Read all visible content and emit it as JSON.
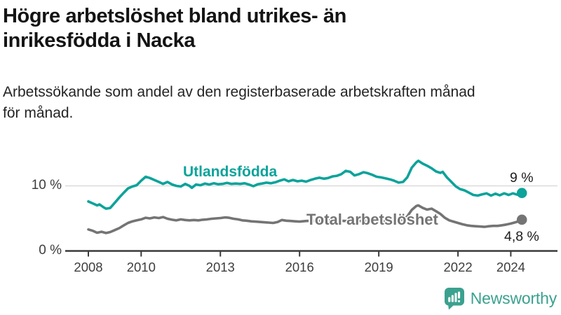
{
  "header": {
    "title_line1": "Högre arbetslöshet bland utrikes- än",
    "title_line2": "inrikesfödda i Nacka",
    "subtitle_line1": "Arbetssökande som andel av den registerbaserade arbetskraften månad",
    "subtitle_line2": "för månad."
  },
  "chart_data": {
    "type": "line",
    "title": "Högre arbetslöshet bland utrikes- än inrikesfödda i Nacka",
    "subtitle": "Arbetssökande som andel av den registerbaserade arbetskraften månad för månad.",
    "x_ticks": [
      2008,
      2010,
      2013,
      2016,
      2019,
      2022,
      2024
    ],
    "y_ticks": [
      {
        "value": 0,
        "label": "0 %"
      },
      {
        "value": 10,
        "label": "10 %"
      }
    ],
    "xlim": [
      2008,
      2024.6
    ],
    "ylim": [
      0,
      15.5
    ],
    "grid": "single horizontal gridline at 10 %",
    "legend_position": "inline labels on lines",
    "axis_color": "#3a3a3a",
    "gridline_color": "#dbdbdb",
    "series": [
      {
        "name": "Utlandsfödda",
        "color": "#0ba39a",
        "end_label": "9 %",
        "end_value": 8.9,
        "points": [
          [
            2008.0,
            7.6
          ],
          [
            2008.17,
            7.3
          ],
          [
            2008.33,
            7.0
          ],
          [
            2008.42,
            7.15
          ],
          [
            2008.58,
            6.7
          ],
          [
            2008.67,
            6.5
          ],
          [
            2008.83,
            6.6
          ],
          [
            2009.0,
            7.4
          ],
          [
            2009.17,
            8.2
          ],
          [
            2009.33,
            8.9
          ],
          [
            2009.5,
            9.6
          ],
          [
            2009.67,
            9.9
          ],
          [
            2009.83,
            10.1
          ],
          [
            2010.0,
            10.8
          ],
          [
            2010.17,
            11.4
          ],
          [
            2010.33,
            11.2
          ],
          [
            2010.5,
            10.9
          ],
          [
            2010.67,
            10.6
          ],
          [
            2010.83,
            10.3
          ],
          [
            2011.0,
            10.6
          ],
          [
            2011.17,
            10.2
          ],
          [
            2011.33,
            10.0
          ],
          [
            2011.5,
            9.9
          ],
          [
            2011.67,
            10.3
          ],
          [
            2011.83,
            10.0
          ],
          [
            2011.92,
            9.7
          ],
          [
            2012.08,
            10.2
          ],
          [
            2012.25,
            10.1
          ],
          [
            2012.42,
            10.35
          ],
          [
            2012.58,
            10.2
          ],
          [
            2012.75,
            10.4
          ],
          [
            2012.92,
            10.25
          ],
          [
            2013.08,
            10.3
          ],
          [
            2013.25,
            10.45
          ],
          [
            2013.42,
            10.3
          ],
          [
            2013.58,
            10.35
          ],
          [
            2013.75,
            10.3
          ],
          [
            2013.92,
            10.4
          ],
          [
            2014.08,
            10.2
          ],
          [
            2014.25,
            9.95
          ],
          [
            2014.42,
            10.25
          ],
          [
            2014.58,
            10.35
          ],
          [
            2014.75,
            10.5
          ],
          [
            2014.92,
            10.4
          ],
          [
            2015.08,
            10.55
          ],
          [
            2015.25,
            10.8
          ],
          [
            2015.42,
            11.0
          ],
          [
            2015.58,
            10.7
          ],
          [
            2015.75,
            10.9
          ],
          [
            2015.92,
            10.7
          ],
          [
            2016.08,
            10.8
          ],
          [
            2016.25,
            10.65
          ],
          [
            2016.42,
            10.9
          ],
          [
            2016.58,
            11.1
          ],
          [
            2016.75,
            11.25
          ],
          [
            2016.92,
            11.1
          ],
          [
            2017.08,
            11.2
          ],
          [
            2017.25,
            11.45
          ],
          [
            2017.42,
            11.55
          ],
          [
            2017.58,
            11.8
          ],
          [
            2017.75,
            12.3
          ],
          [
            2017.92,
            12.15
          ],
          [
            2018.08,
            11.6
          ],
          [
            2018.25,
            11.8
          ],
          [
            2018.42,
            12.1
          ],
          [
            2018.58,
            11.95
          ],
          [
            2018.75,
            11.7
          ],
          [
            2018.92,
            11.4
          ],
          [
            2019.08,
            11.3
          ],
          [
            2019.25,
            11.15
          ],
          [
            2019.42,
            11.0
          ],
          [
            2019.58,
            10.8
          ],
          [
            2019.75,
            10.5
          ],
          [
            2019.92,
            10.6
          ],
          [
            2020.08,
            11.3
          ],
          [
            2020.25,
            12.8
          ],
          [
            2020.42,
            13.6
          ],
          [
            2020.5,
            13.85
          ],
          [
            2020.67,
            13.4
          ],
          [
            2020.83,
            13.1
          ],
          [
            2021.0,
            12.7
          ],
          [
            2021.17,
            12.2
          ],
          [
            2021.33,
            12.0
          ],
          [
            2021.42,
            12.15
          ],
          [
            2021.58,
            11.3
          ],
          [
            2021.75,
            10.6
          ],
          [
            2021.92,
            9.9
          ],
          [
            2022.08,
            9.5
          ],
          [
            2022.25,
            9.3
          ],
          [
            2022.42,
            8.95
          ],
          [
            2022.58,
            8.6
          ],
          [
            2022.75,
            8.5
          ],
          [
            2022.92,
            8.7
          ],
          [
            2023.08,
            8.85
          ],
          [
            2023.25,
            8.5
          ],
          [
            2023.42,
            8.8
          ],
          [
            2023.58,
            8.55
          ],
          [
            2023.75,
            8.85
          ],
          [
            2023.92,
            8.6
          ],
          [
            2024.08,
            8.85
          ],
          [
            2024.25,
            8.65
          ],
          [
            2024.42,
            8.9
          ]
        ]
      },
      {
        "name": "Total arbetslöshet",
        "color": "#747474",
        "end_label": "4,8 %",
        "end_value": 4.8,
        "points": [
          [
            2008.0,
            3.3
          ],
          [
            2008.17,
            3.1
          ],
          [
            2008.33,
            2.8
          ],
          [
            2008.5,
            2.95
          ],
          [
            2008.67,
            2.75
          ],
          [
            2008.83,
            2.9
          ],
          [
            2009.0,
            3.2
          ],
          [
            2009.17,
            3.5
          ],
          [
            2009.33,
            3.9
          ],
          [
            2009.5,
            4.3
          ],
          [
            2009.67,
            4.55
          ],
          [
            2009.83,
            4.7
          ],
          [
            2010.0,
            4.85
          ],
          [
            2010.17,
            5.1
          ],
          [
            2010.33,
            5.0
          ],
          [
            2010.5,
            5.15
          ],
          [
            2010.67,
            5.05
          ],
          [
            2010.83,
            5.2
          ],
          [
            2011.0,
            4.95
          ],
          [
            2011.17,
            4.8
          ],
          [
            2011.33,
            4.7
          ],
          [
            2011.5,
            4.85
          ],
          [
            2011.67,
            4.75
          ],
          [
            2011.83,
            4.7
          ],
          [
            2012.0,
            4.75
          ],
          [
            2012.17,
            4.7
          ],
          [
            2012.33,
            4.8
          ],
          [
            2012.5,
            4.85
          ],
          [
            2012.67,
            4.95
          ],
          [
            2012.83,
            5.0
          ],
          [
            2013.0,
            5.05
          ],
          [
            2013.17,
            5.15
          ],
          [
            2013.33,
            5.1
          ],
          [
            2013.5,
            4.95
          ],
          [
            2013.67,
            4.85
          ],
          [
            2013.83,
            4.7
          ],
          [
            2014.0,
            4.65
          ],
          [
            2014.17,
            4.55
          ],
          [
            2014.33,
            4.5
          ],
          [
            2014.5,
            4.45
          ],
          [
            2014.67,
            4.4
          ],
          [
            2014.83,
            4.35
          ],
          [
            2015.0,
            4.3
          ],
          [
            2015.17,
            4.45
          ],
          [
            2015.33,
            4.75
          ],
          [
            2015.5,
            4.65
          ],
          [
            2015.67,
            4.6
          ],
          [
            2015.83,
            4.55
          ],
          [
            2016.0,
            4.5
          ],
          [
            2016.25,
            4.6
          ],
          [
            2016.5,
            4.65
          ],
          [
            2016.75,
            4.6
          ],
          [
            2017.0,
            4.65
          ],
          [
            2017.25,
            4.7
          ],
          [
            2017.5,
            4.65
          ],
          [
            2017.75,
            4.6
          ],
          [
            2018.0,
            4.65
          ],
          [
            2018.25,
            4.6
          ],
          [
            2018.5,
            4.65
          ],
          [
            2018.75,
            4.6
          ],
          [
            2019.0,
            4.55
          ],
          [
            2019.25,
            4.6
          ],
          [
            2019.5,
            4.6
          ],
          [
            2019.75,
            4.7
          ],
          [
            2019.92,
            4.8
          ],
          [
            2020.08,
            5.3
          ],
          [
            2020.25,
            6.3
          ],
          [
            2020.42,
            6.9
          ],
          [
            2020.5,
            7.0
          ],
          [
            2020.67,
            6.6
          ],
          [
            2020.83,
            6.35
          ],
          [
            2021.0,
            6.5
          ],
          [
            2021.17,
            6.1
          ],
          [
            2021.33,
            5.7
          ],
          [
            2021.5,
            5.1
          ],
          [
            2021.67,
            4.7
          ],
          [
            2021.83,
            4.5
          ],
          [
            2022.0,
            4.3
          ],
          [
            2022.17,
            4.1
          ],
          [
            2022.33,
            3.95
          ],
          [
            2022.5,
            3.85
          ],
          [
            2022.67,
            3.8
          ],
          [
            2022.83,
            3.75
          ],
          [
            2023.0,
            3.7
          ],
          [
            2023.17,
            3.8
          ],
          [
            2023.33,
            3.85
          ],
          [
            2023.5,
            3.85
          ],
          [
            2023.67,
            3.95
          ],
          [
            2023.83,
            4.05
          ],
          [
            2024.0,
            4.2
          ],
          [
            2024.17,
            4.4
          ],
          [
            2024.33,
            4.6
          ],
          [
            2024.42,
            4.8
          ]
        ]
      }
    ]
  },
  "footer": {
    "brand": "Newsworthy",
    "brand_color": "#3ba18f",
    "logo_icon": "bar-chart-speech-bubble-icon"
  }
}
